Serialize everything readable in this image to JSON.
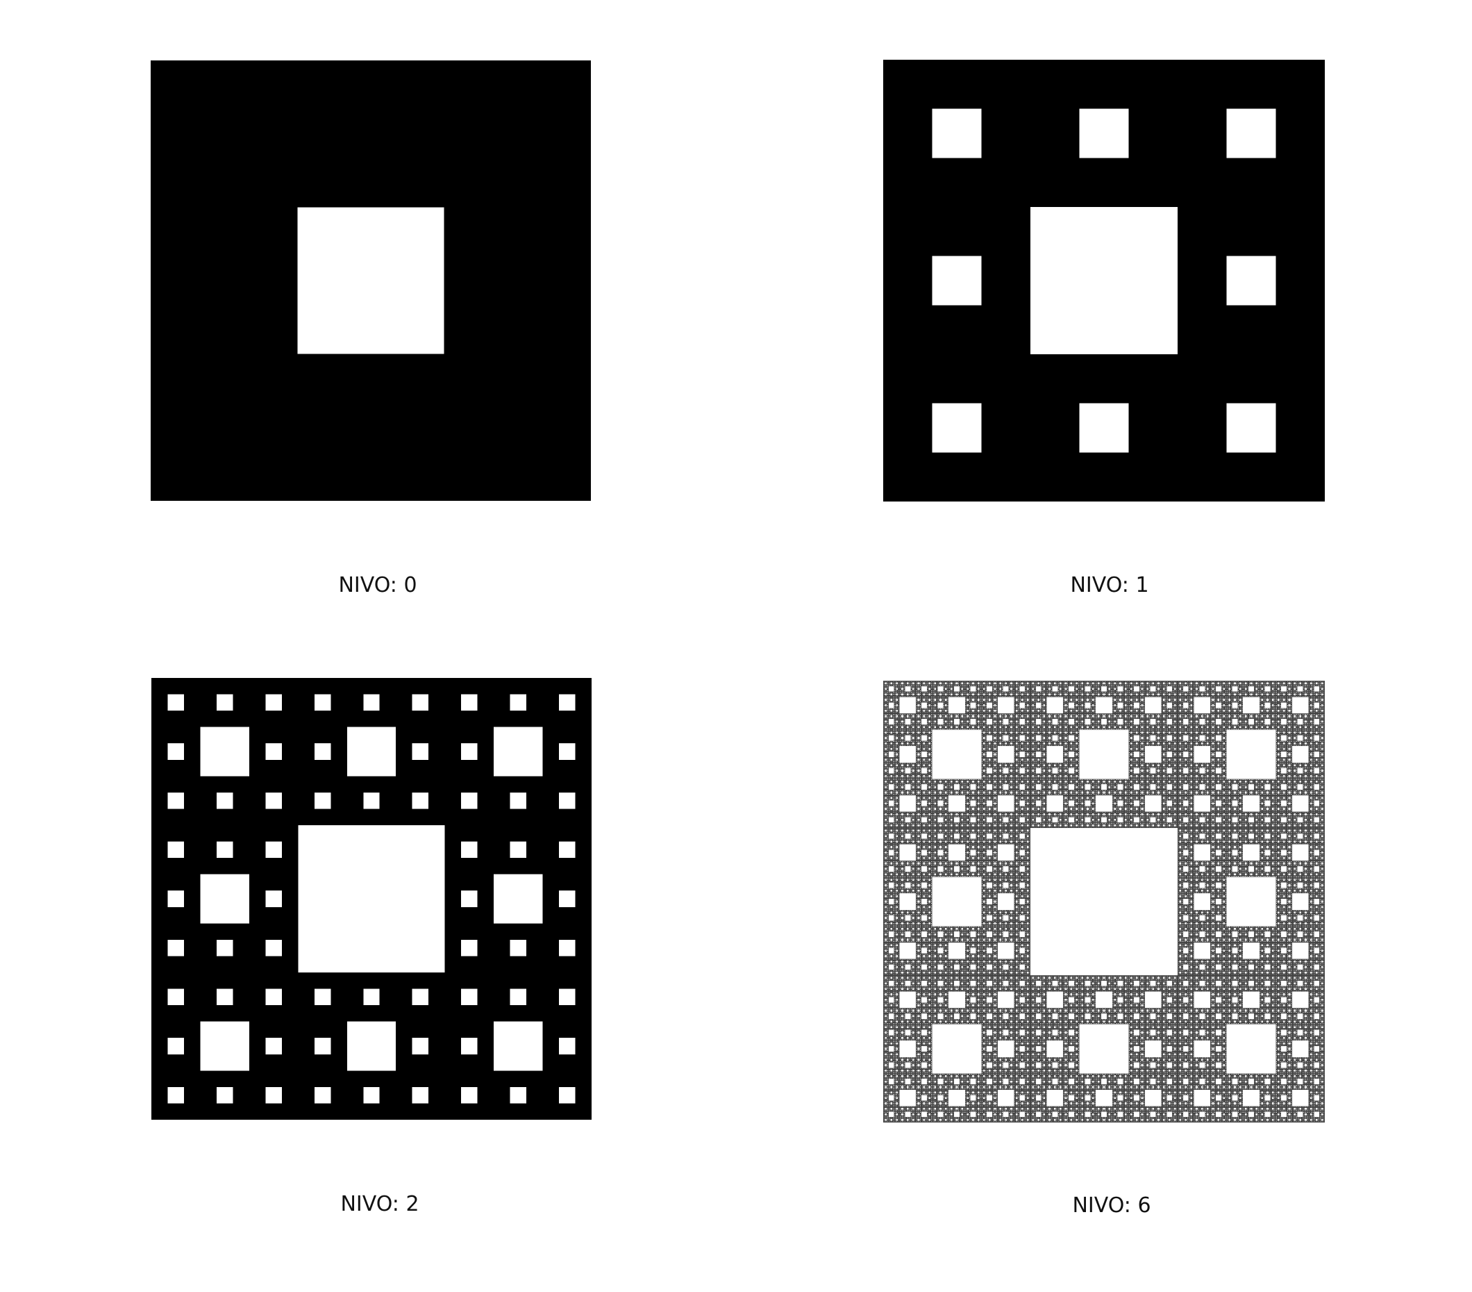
{
  "colors": {
    "fill": "#000000",
    "hole": "#ffffff",
    "fine_fill": "#444444"
  },
  "panels": [
    {
      "level": 0,
      "caption": "NIVO: 0"
    },
    {
      "level": 1,
      "caption": "NIVO: 1"
    },
    {
      "level": 2,
      "caption": "NIVO: 2"
    },
    {
      "level": 6,
      "caption": "NIVO: 6"
    }
  ]
}
